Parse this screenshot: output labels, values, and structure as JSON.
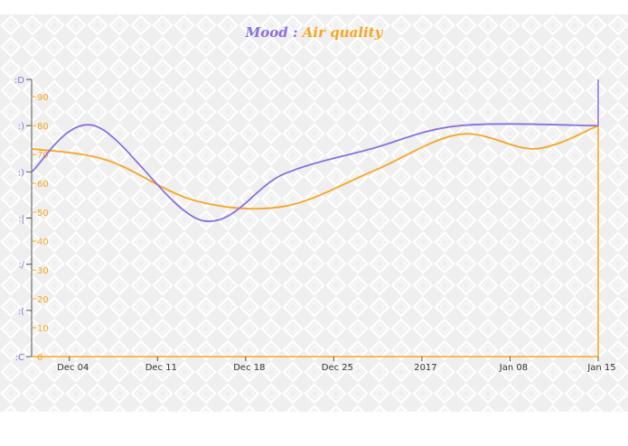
{
  "chart_data": {
    "type": "line",
    "title_mood": "Mood",
    "title_separator": ":",
    "title_air": "Air quality",
    "x_ticks": [
      "Dec 04",
      "Dec 11",
      "Dec 18",
      "Dec 25",
      "2017",
      "Jan 08",
      "Jan 15"
    ],
    "x_range_days": [
      0,
      45
    ],
    "mood_axis": {
      "labels": [
        ":C",
        ":(",
        ":/",
        ":|",
        ":)",
        ":)",
        ":D"
      ],
      "values": [
        0,
        1,
        2,
        3,
        4,
        5,
        6
      ]
    },
    "air_axis": {
      "ticks": [
        0,
        10,
        20,
        30,
        40,
        50,
        60,
        70,
        80,
        90
      ],
      "ylim": [
        0,
        96
      ]
    },
    "series": [
      {
        "name": "Mood",
        "color": "#8a6fdf",
        "axis": "mood",
        "points": [
          [
            0,
            4.0
          ],
          [
            5,
            5.0
          ],
          [
            13.5,
            2.95
          ],
          [
            20,
            3.95
          ],
          [
            27,
            4.5
          ],
          [
            34,
            5.0
          ],
          [
            45,
            5.0
          ]
        ]
      },
      {
        "name": "Air quality",
        "color": "#f5a623",
        "axis": "air",
        "points": [
          [
            0,
            72
          ],
          [
            6,
            68
          ],
          [
            13,
            54
          ],
          [
            20,
            52
          ],
          [
            27,
            64
          ],
          [
            34,
            77
          ],
          [
            40,
            72
          ],
          [
            45,
            80
          ]
        ]
      }
    ]
  }
}
